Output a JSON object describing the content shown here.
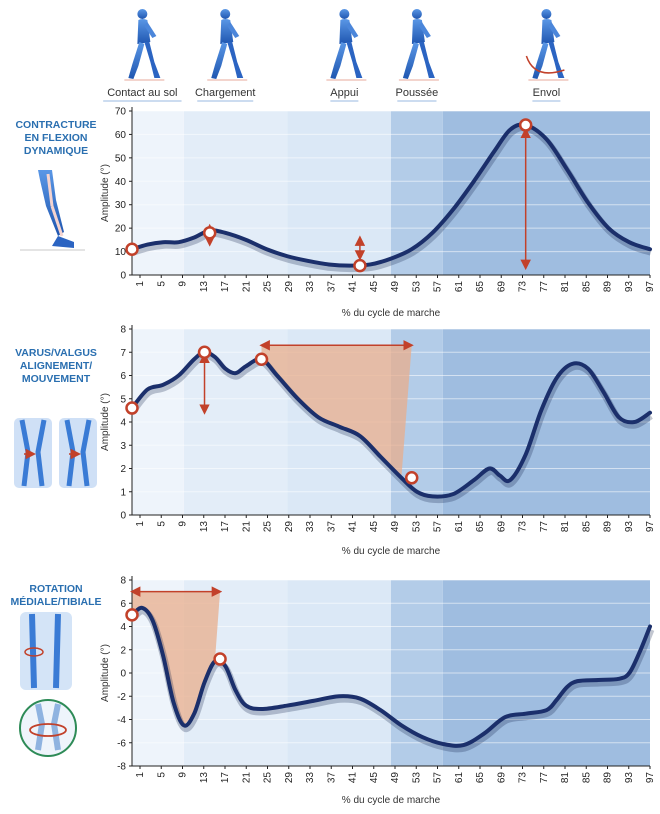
{
  "phases": [
    {
      "label": "Contact au sol",
      "x": 2
    },
    {
      "label": "Chargement",
      "x": 18
    },
    {
      "label": "Appui",
      "x": 41
    },
    {
      "label": "Poussée",
      "x": 55
    },
    {
      "label": "Envol",
      "x": 80
    }
  ],
  "colors": {
    "curve": "#1b2f6b",
    "marker": "#c2412a",
    "band_light": "#eef4fb",
    "band_mid": "#dbe8f6",
    "band_dark": "#b3cce8",
    "band_darker": "#9fbde0",
    "shade": "#e8ad8c",
    "title": "#2a6fb0",
    "figure": "#3a7bd5"
  },
  "icons": [
    "walking-figure-icon",
    "leg-flexion-icon",
    "knees-varus-valgus-icon",
    "tibia-rotation-icon",
    "knee-joint-rotation-icon"
  ],
  "chart_data": [
    {
      "type": "line",
      "side_title": [
        "CONTRACTURE",
        "EN FLEXION",
        "DYNAMIQUE"
      ],
      "xlabel": "% du cycle de marche",
      "ylabel": "Amplitude (°)",
      "xlim": [
        0,
        100
      ],
      "ylim": [
        0,
        70
      ],
      "yticks": [
        0,
        10,
        20,
        30,
        40,
        50,
        60,
        70
      ],
      "xticks": [
        1,
        5,
        9,
        13,
        17,
        21,
        25,
        29,
        33,
        37,
        41,
        45,
        49,
        53,
        57,
        61,
        65,
        69,
        73,
        77,
        81,
        85,
        89,
        93,
        97
      ],
      "x": [
        0,
        3,
        6,
        9,
        12,
        15,
        18,
        22,
        26,
        30,
        34,
        38,
        42,
        46,
        50,
        54,
        58,
        62,
        66,
        70,
        73,
        76,
        80,
        84,
        88,
        92,
        96,
        100
      ],
      "values": [
        11,
        13,
        14,
        14,
        16,
        19,
        18,
        15,
        11,
        8,
        6,
        4.5,
        4,
        4.5,
        7,
        11,
        18,
        28,
        40,
        53,
        62,
        64,
        58,
        45,
        31,
        20,
        14,
        11
      ],
      "markers": [
        {
          "x": 0,
          "y": 11
        },
        {
          "x": 15,
          "y": 18
        },
        {
          "x": 44,
          "y": 4
        },
        {
          "x": 76,
          "y": 64
        }
      ],
      "arrows": [
        {
          "x": 15,
          "y1": 13,
          "y2": 21,
          "dir": "v"
        },
        {
          "x": 44,
          "y1": 7,
          "y2": 16,
          "dir": "v"
        },
        {
          "x": 76,
          "y1": 3,
          "y2": 62,
          "dir": "v"
        }
      ]
    },
    {
      "type": "line",
      "side_title": [
        "VARUS/VALGUS",
        "ALIGNEMENT/",
        "MOUVEMENT"
      ],
      "xlabel": "% du cycle de marche",
      "ylabel": "Amplitude (°)",
      "xlim": [
        0,
        100
      ],
      "ylim": [
        0,
        8
      ],
      "yticks": [
        0,
        1,
        2,
        3,
        4,
        5,
        6,
        7,
        8
      ],
      "xticks": [
        1,
        5,
        9,
        13,
        17,
        21,
        25,
        29,
        33,
        37,
        41,
        45,
        49,
        53,
        57,
        61,
        65,
        69,
        73,
        77,
        81,
        85,
        89,
        93,
        97
      ],
      "x": [
        0,
        3,
        6,
        9,
        12,
        14,
        16,
        18,
        20,
        22,
        25,
        28,
        32,
        36,
        40,
        44,
        48,
        52,
        55,
        58,
        62,
        66,
        69,
        71,
        73,
        76,
        79,
        82,
        85,
        88,
        91,
        94,
        97,
        100
      ],
      "values": [
        4.6,
        5.4,
        5.6,
        6,
        6.7,
        7,
        6.8,
        6.3,
        6.1,
        6.4,
        6.7,
        6,
        5,
        4.2,
        3.8,
        3.4,
        2.5,
        1.6,
        1.0,
        0.8,
        0.9,
        1.5,
        2.0,
        1.7,
        1.5,
        2.6,
        4.5,
        5.9,
        6.5,
        6.3,
        5.3,
        4.2,
        4.0,
        4.4
      ],
      "markers": [
        {
          "x": 0,
          "y": 4.6
        },
        {
          "x": 14,
          "y": 7
        },
        {
          "x": 25,
          "y": 6.7
        },
        {
          "x": 54,
          "y": 1.6
        }
      ],
      "arrows": [
        {
          "x": 14,
          "y1": 4.4,
          "y2": 6.9,
          "dir": "v"
        },
        {
          "y": 7.3,
          "x1": 25,
          "x2": 54,
          "dir": "h"
        }
      ],
      "shaded": {
        "x1": 25,
        "x2": 54,
        "top": 7.3
      }
    },
    {
      "type": "line",
      "side_title": [
        "ROTATION",
        "MÉDIALE/TIBIALE"
      ],
      "xlabel": "% du cycle de marche",
      "ylabel": "Amplitude (°)",
      "xlim": [
        0,
        100
      ],
      "ylim": [
        -8,
        8
      ],
      "yticks": [
        -8,
        -6,
        -4,
        -2,
        0,
        2,
        4,
        6,
        8
      ],
      "xticks": [
        1,
        5,
        9,
        13,
        17,
        21,
        25,
        29,
        33,
        37,
        41,
        45,
        49,
        53,
        57,
        61,
        65,
        69,
        73,
        77,
        81,
        85,
        89,
        93,
        97
      ],
      "x": [
        0,
        2,
        4,
        6,
        8,
        10,
        12,
        14,
        16,
        18,
        20,
        22,
        25,
        30,
        35,
        40,
        44,
        48,
        52,
        56,
        60,
        64,
        68,
        72,
        76,
        80,
        82,
        84,
        86,
        90,
        94,
        96,
        98,
        100
      ],
      "values": [
        5,
        5.6,
        4.5,
        1.5,
        -2.5,
        -4.5,
        -3.5,
        -0.8,
        1.0,
        0.6,
        -1.5,
        -2.8,
        -3.1,
        -2.8,
        -2.4,
        -2.0,
        -2.2,
        -3.2,
        -4.5,
        -5.5,
        -6.1,
        -6.2,
        -5.2,
        -3.8,
        -3.5,
        -3.2,
        -2.3,
        -1.2,
        -0.7,
        -0.6,
        -0.5,
        0,
        1.8,
        4.0
      ],
      "markers": [
        {
          "x": 0,
          "y": 5
        },
        {
          "x": 17,
          "y": 1.2
        }
      ],
      "arrows": [
        {
          "y": 7,
          "x1": 0,
          "x2": 17,
          "dir": "h"
        }
      ],
      "shaded": {
        "x1": 0,
        "x2": 17,
        "top": 7
      }
    }
  ]
}
